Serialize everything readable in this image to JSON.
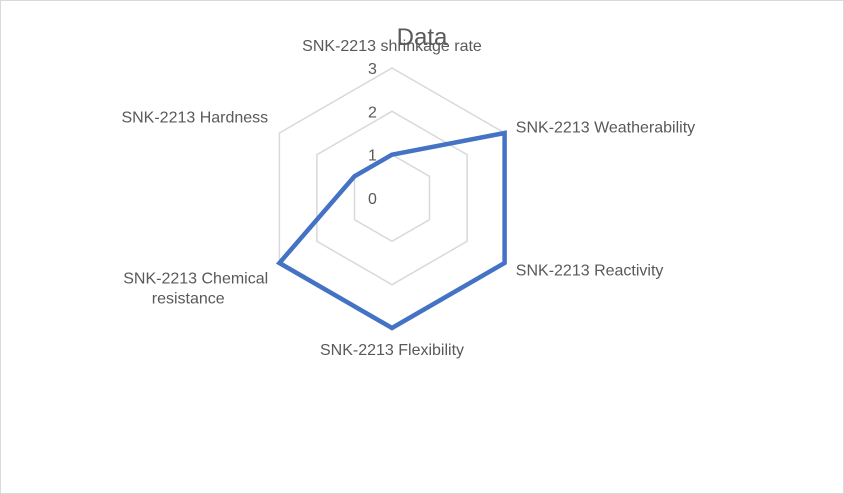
{
  "chart_data": {
    "type": "radar",
    "title": "Data",
    "categories": [
      [
        "SNK-2213 shrinkage rate"
      ],
      [
        "SNK-2213 Weatherability"
      ],
      [
        "SNK-2213 Reactivity"
      ],
      [
        "SNK-2213 Flexibility"
      ],
      [
        "SNK-2213 Chemical",
        "resistance"
      ],
      [
        "SNK-2213 Hardness"
      ]
    ],
    "series": [
      {
        "values": [
          1,
          3,
          3,
          3,
          3,
          1
        ],
        "color": "#4472c4"
      }
    ],
    "rlim": [
      0,
      3
    ],
    "ticks": [
      "0",
      "1",
      "2",
      "3"
    ],
    "grid": true,
    "grid_color": "#d9d9d9",
    "legend": "none"
  }
}
